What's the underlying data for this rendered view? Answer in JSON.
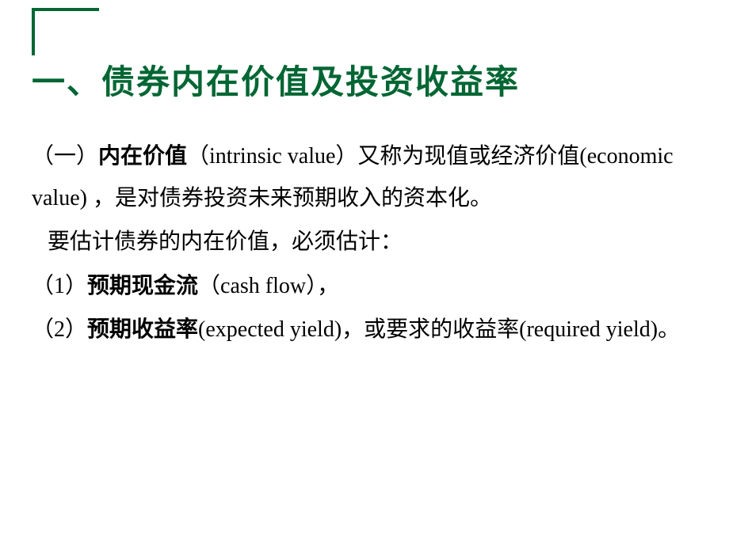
{
  "slide": {
    "title": "一、债券内在价值及投资收益率",
    "body": {
      "section1_label": "（一）",
      "section1_bold": "内在价值",
      "section1_text1": "（intrinsic value）又称为现值或经济价值(economic value) ，是对债券投资未来预期收入的资本化。",
      "line2": "要估计债券的内在价值，必须估计：",
      "item1_label": "（1）",
      "item1_bold": "预期现金流",
      "item1_text": "（cash flow），",
      "item2_label": "（2）",
      "item2_bold": "预期收益率",
      "item2_text": "(expected yield)，或要求的收益率(required yield)。"
    },
    "colors": {
      "title_color": "#006633",
      "text_color": "#000000",
      "background_color": "#ffffff",
      "decoration_color": "#006633"
    },
    "typography": {
      "title_fontsize": 42,
      "body_fontsize": 28,
      "title_fontfamily": "KaiTi",
      "body_fontfamily": "SimSun"
    }
  }
}
